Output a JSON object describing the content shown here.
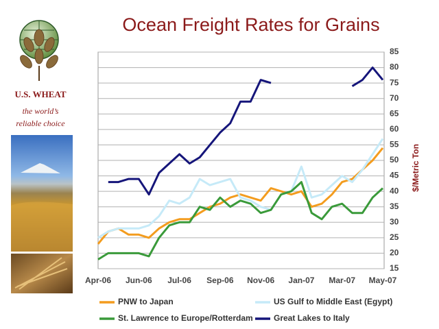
{
  "brand": {
    "name": "U.S. WHEAT",
    "tagline": [
      "the world’s",
      "reliable choice"
    ]
  },
  "chart_data": {
    "type": "line",
    "title": "Ocean Freight Rates for Grains",
    "y_label": "$/Metric Ton",
    "categories": [
      "Apr-06",
      null,
      null,
      null,
      "Jun-06",
      null,
      null,
      null,
      "Jul-06",
      null,
      null,
      null,
      "Sep-06",
      null,
      null,
      null,
      "Nov-06",
      null,
      null,
      null,
      "Jan-07",
      null,
      null,
      null,
      "Mar-07",
      null,
      null,
      null,
      "May-07"
    ],
    "ylim": [
      15,
      85
    ],
    "yticks": [
      15,
      20,
      25,
      30,
      35,
      40,
      45,
      50,
      55,
      60,
      65,
      70,
      75,
      80,
      85
    ],
    "grid": true,
    "legend": "bottom",
    "series": [
      {
        "name": "PNW to Japan",
        "color": "#f39c1e",
        "values": [
          23,
          27,
          28,
          26,
          26,
          25,
          28,
          30,
          31,
          31,
          33,
          35,
          36,
          38,
          39,
          38,
          37,
          41,
          40,
          39,
          40,
          35,
          36,
          39,
          43,
          44,
          47,
          50,
          54
        ]
      },
      {
        "name": "US Gulf to Middle East (Egypt)",
        "color": "#c6eaf8",
        "values": [
          25,
          27,
          28,
          28,
          28,
          29,
          32,
          37,
          36,
          38,
          44,
          42,
          43,
          44,
          38,
          37,
          35,
          34,
          39,
          40,
          48,
          38,
          39,
          42,
          45,
          43,
          47,
          52,
          57
        ]
      },
      {
        "name": "St. Lawrence to Europe/Rotterdam",
        "color": "#3a9a3a",
        "values": [
          18,
          20,
          20,
          20,
          20,
          19,
          25,
          29,
          30,
          30,
          35,
          34,
          38,
          35,
          37,
          36,
          33,
          34,
          39,
          40,
          43,
          33,
          31,
          35,
          36,
          33,
          33,
          38,
          41
        ]
      },
      {
        "name": "Great Lakes to Italy",
        "color": "#15157a",
        "values": [
          null,
          43,
          43,
          44,
          44,
          39,
          46,
          49,
          52,
          49,
          51,
          55,
          59,
          62,
          69,
          69,
          76,
          75,
          null,
          null,
          null,
          null,
          null,
          null,
          null,
          74,
          76,
          80,
          76
        ]
      }
    ]
  }
}
